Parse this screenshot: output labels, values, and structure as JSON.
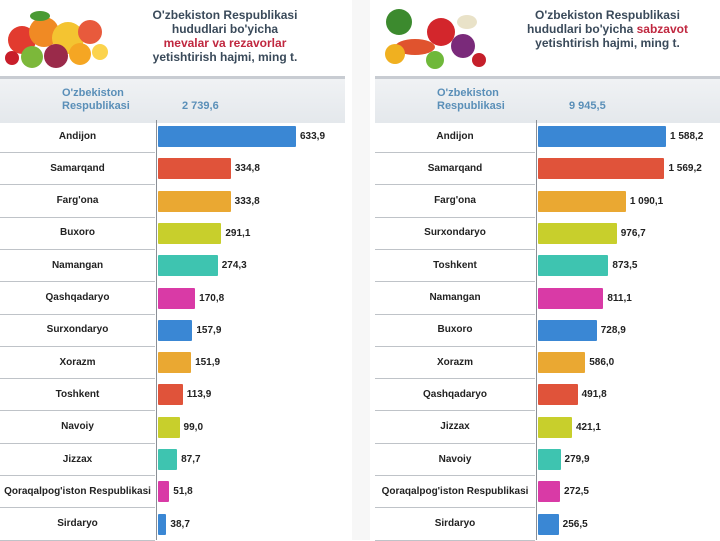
{
  "colors": {
    "blue": "#3a87d4",
    "red": "#e0533a",
    "orange": "#eaa832",
    "lime": "#c8cf2c",
    "teal": "#3ec4b0",
    "magenta": "#d93aa6"
  },
  "left": {
    "title_lines": [
      "O'zbekiston Respublikasi",
      "hududlari bo'yicha"
    ],
    "title_highlight": "mevalar va rezavorlar",
    "title_tail": "yetishtirish hajmi, ming t.",
    "total_label_line1": "O'zbekiston",
    "total_label_line2": "Respublikasi",
    "total_value": "2 739,6"
  },
  "right": {
    "title_lines": [
      "O'zbekiston Respublikasi"
    ],
    "title_line2_prefix": "hududlari bo'yicha",
    "title_highlight": "sabzavot",
    "title_tail": "yetishtirish hajmi, ming t.",
    "total_label_line1": "O'zbekiston",
    "total_label_line2": "Respublikasi",
    "total_value": "9 945,5"
  },
  "chart_data": [
    {
      "type": "bar",
      "orientation": "horizontal",
      "title": "O'zbekiston Respublikasi hududlari bo'yicha mevalar va rezavorlar yetishtirish hajmi, ming t.",
      "categories": [
        "Andijon",
        "Samarqand",
        "Farg'ona",
        "Buxoro",
        "Namangan",
        "Qashqadaryo",
        "Surxondaryo",
        "Xorazm",
        "Toshkent",
        "Navoiy",
        "Jizzax",
        "Qoraqalpog'iston Respublikasi",
        "Sirdaryo"
      ],
      "values": [
        633.9,
        334.8,
        333.8,
        291.1,
        274.3,
        170.8,
        157.9,
        151.9,
        113.9,
        99.0,
        87.7,
        51.8,
        38.7
      ],
      "value_labels": [
        "633,9",
        "334,8",
        "333,8",
        "291,1",
        "274,3",
        "170,8",
        "157,9",
        "151,9",
        "113,9",
        "99,0",
        "87,7",
        "51,8",
        "38,7"
      ],
      "bar_colors": [
        "blue",
        "red",
        "orange",
        "lime",
        "teal",
        "magenta",
        "blue",
        "orange",
        "red",
        "lime",
        "teal",
        "magenta",
        "blue"
      ]
    },
    {
      "type": "bar",
      "orientation": "horizontal",
      "title": "O'zbekiston Respublikasi hududlari bo'yicha sabzavot yetishtirish hajmi, ming t.",
      "categories": [
        "Andijon",
        "Samarqand",
        "Farg'ona",
        "Surxondaryo",
        "Toshkent",
        "Namangan",
        "Buxoro",
        "Xorazm",
        "Qashqadaryo",
        "Jizzax",
        "Navoiy",
        "Qoraqalpog'iston Respublikasi",
        "Sirdaryo"
      ],
      "values": [
        1588.2,
        1569.2,
        1090.1,
        976.7,
        873.5,
        811.1,
        728.9,
        586.0,
        491.8,
        421.1,
        279.9,
        272.5,
        256.5
      ],
      "value_labels": [
        "1 588,2",
        "1 569,2",
        "1 090,1",
        "976,7",
        "873,5",
        "811,1",
        "728,9",
        "586,0",
        "491,8",
        "421,1",
        "279,9",
        "272,5",
        "256,5"
      ],
      "bar_colors": [
        "blue",
        "red",
        "orange",
        "lime",
        "teal",
        "magenta",
        "blue",
        "orange",
        "red",
        "lime",
        "teal",
        "magenta",
        "blue"
      ]
    }
  ]
}
